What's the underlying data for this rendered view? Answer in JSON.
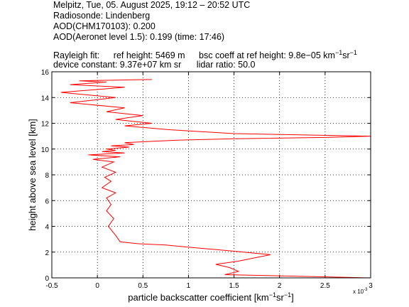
{
  "header": {
    "line1": "Melpitz, Tue, 05. August 2025, 19:12 – 20:52 UTC",
    "line2": "Radiosonde: Lindenberg",
    "line3": "AOD(CHM170103): 0.200",
    "line4": "AOD(Aeronet level 1.5): 0.199   (time: 17:46)",
    "line5_a": "Rayleigh fit:",
    "line5_b": "ref height: 5469 m",
    "line5_c": "bsc coeff at ref height: 9.8e−05 km",
    "line5_c_sup1": "−1",
    "line5_c_mid": "sr",
    "line5_c_sup2": "−1",
    "line6_a": "device constant: 9.37e+07 km sr",
    "line6_b": "lidar ratio: 50.0"
  },
  "chart_data": {
    "type": "line",
    "xlabel_main": "particle backscatter coefficient [km",
    "xlabel_sup1": "−1",
    "xlabel_mid": "sr",
    "xlabel_sup2": "−1",
    "xlabel_end": "]",
    "ylabel": "height above sea level [km]",
    "x_multiplier": "x 10",
    "x_multiplier_exp": "-3",
    "xlim": [
      -0.5,
      3
    ],
    "ylim": [
      0,
      16
    ],
    "xticks": [
      "-0.5",
      "0",
      "0.5",
      "1",
      "1.5",
      "2",
      "2.5",
      "3"
    ],
    "yticks": [
      "0",
      "2",
      "4",
      "6",
      "8",
      "10",
      "12",
      "14",
      "16"
    ],
    "grid": true,
    "line_color": "#ff0000",
    "series": [
      {
        "x": [
          3.0,
          1.4,
          1.55,
          1.45,
          1.3,
          1.55,
          1.9,
          1.45,
          1.05,
          0.75,
          0.45,
          0.25,
          0.2,
          0.12,
          0.18,
          0.1,
          0.15,
          0.1,
          0.2,
          0.05,
          0.15,
          0.08,
          0.2,
          0.05,
          0.18,
          -0.05,
          0.25,
          -0.1,
          0.3,
          0.05,
          0.2,
          0.1,
          0.35,
          0.15,
          0.4,
          0.3,
          0.6,
          0.9,
          1.5,
          2.5,
          3.0,
          1.5,
          0.8,
          0.3,
          0.6,
          0.2,
          0.5,
          0.1,
          0.3,
          -0.3,
          0.2,
          -0.4,
          0.3,
          -0.3,
          0.1,
          -0.2,
          0.6
        ],
        "y": [
          0.0,
          0.25,
          0.5,
          0.8,
          1.05,
          1.3,
          1.8,
          2.1,
          2.35,
          2.55,
          2.65,
          2.8,
          3.3,
          4.0,
          4.6,
          5.2,
          5.7,
          6.2,
          6.6,
          7.0,
          7.5,
          7.8,
          8.2,
          8.6,
          9.0,
          9.2,
          9.4,
          9.55,
          9.7,
          9.8,
          9.9,
          10.0,
          10.15,
          10.25,
          10.35,
          10.5,
          10.6,
          10.7,
          10.8,
          10.9,
          11.0,
          11.2,
          11.5,
          11.8,
          12.0,
          12.3,
          12.6,
          12.9,
          13.2,
          13.6,
          14.0,
          14.4,
          14.8,
          15.0,
          15.2,
          15.3,
          15.4
        ]
      }
    ]
  }
}
